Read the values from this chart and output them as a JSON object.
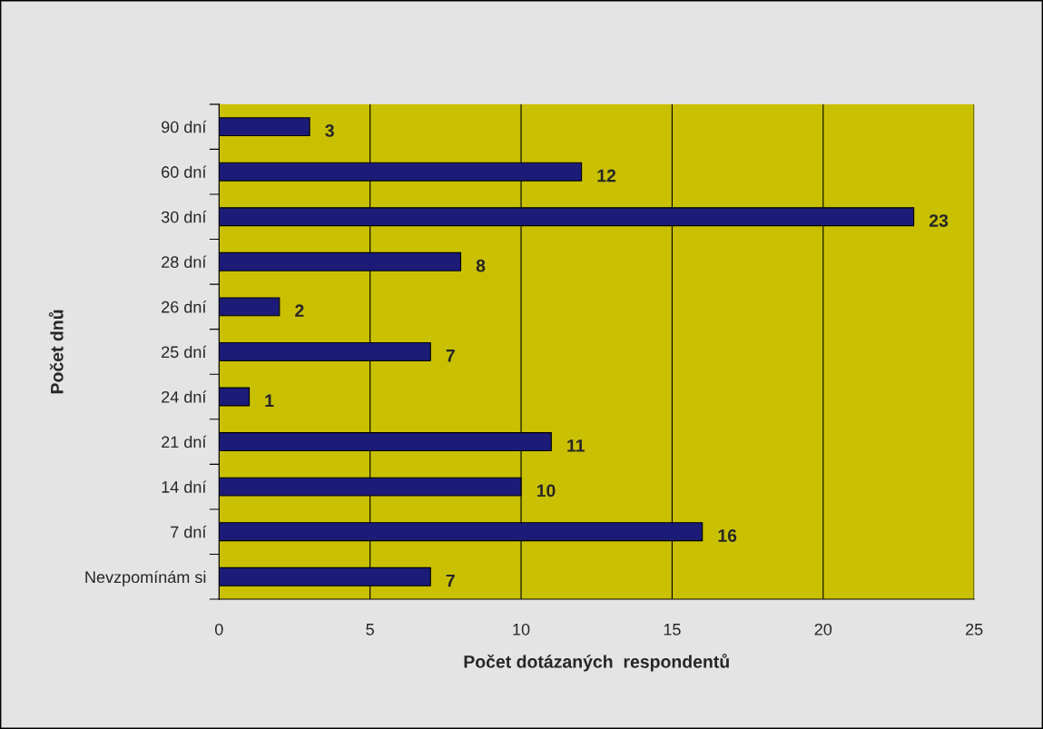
{
  "chart_data": {
    "type": "bar",
    "orientation": "horizontal",
    "xlabel": "Počet dotázaných  respondentů",
    "ylabel": "Počet dnů",
    "categories": [
      "90 dní",
      "60 dní",
      "30 dní",
      "28 dní",
      "26 dní",
      "25 dní",
      "24 dní",
      "21 dní",
      "14 dní",
      "7 dní",
      "Nevzpomínám si"
    ],
    "values": [
      3,
      12,
      23,
      8,
      2,
      7,
      1,
      11,
      10,
      16,
      7
    ],
    "color": "#1c1c78",
    "xlim": [
      0,
      25
    ],
    "xticks": [
      0,
      5,
      10,
      15,
      20,
      25
    ],
    "grid": "x",
    "data_labels": true
  }
}
